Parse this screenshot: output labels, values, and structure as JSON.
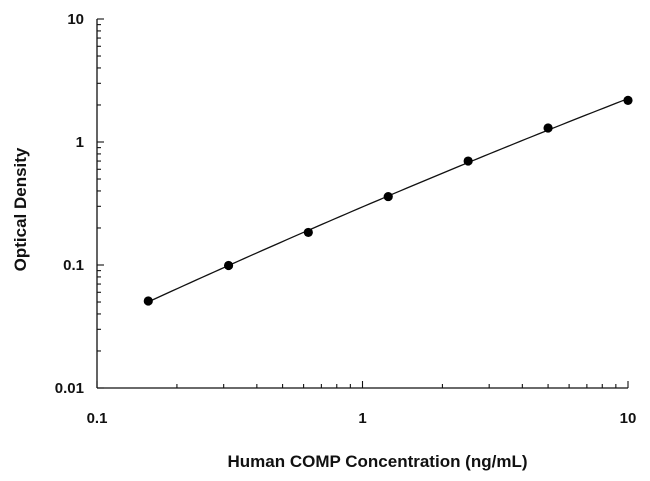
{
  "chart_data": {
    "type": "scatter",
    "title": "",
    "xlabel": "Human COMP Concentration (ng/mL)",
    "ylabel": "Optical Density",
    "x_scale": "log",
    "y_scale": "log",
    "xlim": [
      0.1,
      10
    ],
    "ylim": [
      0.01,
      10
    ],
    "x_ticks": [
      {
        "value": 0.1,
        "label": "0.1"
      },
      {
        "value": 1,
        "label": "1"
      },
      {
        "value": 10,
        "label": "10"
      }
    ],
    "y_ticks": [
      {
        "value": 0.01,
        "label": "0.01"
      },
      {
        "value": 0.1,
        "label": "0.1"
      },
      {
        "value": 1,
        "label": "1"
      },
      {
        "value": 10,
        "label": "10"
      }
    ],
    "grid": false,
    "legend": "none",
    "series": [
      {
        "x": [
          0.156,
          0.313,
          0.625,
          1.25,
          2.5,
          5,
          10
        ],
        "y": [
          0.051,
          0.099,
          0.184,
          0.36,
          0.7,
          1.3,
          2.18
        ],
        "fit_curve": true,
        "color": "#000000"
      }
    ]
  }
}
